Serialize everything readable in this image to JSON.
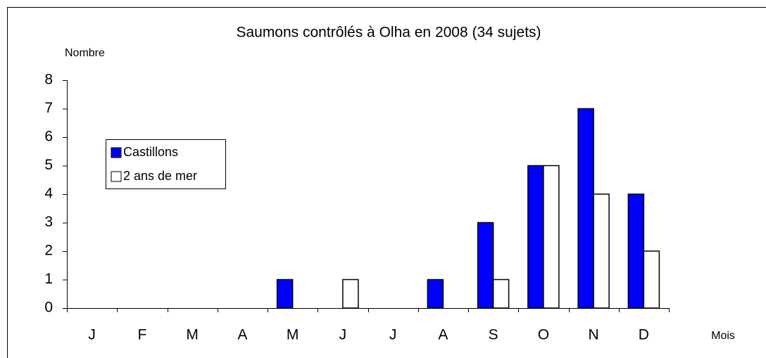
{
  "chart_data": {
    "type": "bar",
    "title": "Saumons contrôlés à Olha en 2008 (34 sujets)",
    "y_label": "Nombre",
    "x_label": "Mois",
    "categories": [
      "J",
      "F",
      "M",
      "A",
      "M",
      "J",
      "J",
      "A",
      "S",
      "O",
      "N",
      "D"
    ],
    "series": [
      {
        "name": "Castillons",
        "color": "#0000ff",
        "values": [
          0,
          0,
          0,
          0,
          1,
          0,
          0,
          1,
          3,
          5,
          7,
          4
        ]
      },
      {
        "name": "2 ans de mer",
        "color": "#ffffff",
        "values": [
          0,
          0,
          0,
          0,
          0,
          1,
          0,
          0,
          1,
          5,
          4,
          2
        ]
      }
    ],
    "ylim": [
      0,
      8
    ],
    "yticks": [
      0,
      1,
      2,
      3,
      4,
      5,
      6,
      7,
      8
    ],
    "grid": false
  }
}
